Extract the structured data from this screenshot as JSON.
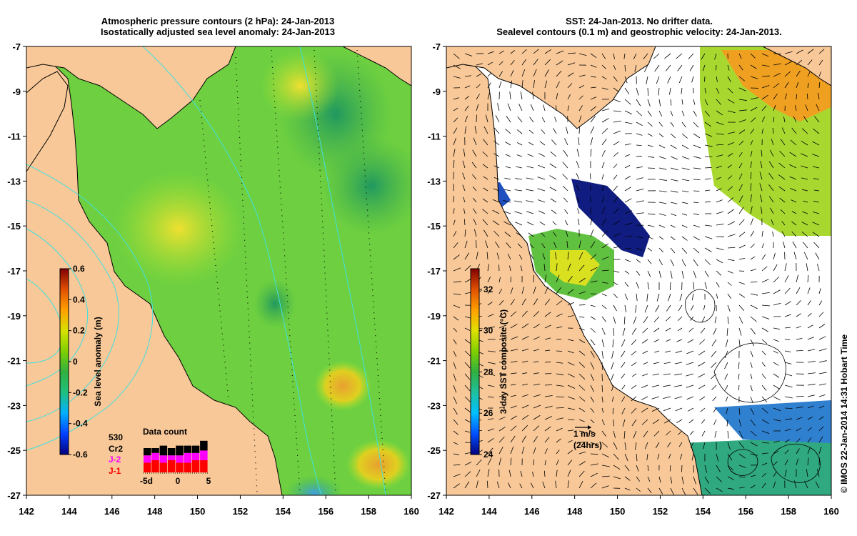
{
  "left_panel": {
    "title_line1": "Atmospheric pressure contours (2 hPa): 24-Jan-2013",
    "title_line2": "Isostatically adjusted sea level anomaly: 24-Jan-2013",
    "colorbar": {
      "label": "Sea level anomaly (m)",
      "ticks": [
        "0.6",
        "0.4",
        "0.2",
        "0",
        "-0.2",
        "-0.4",
        "-0.6"
      ],
      "range": [
        -0.6,
        0.6
      ],
      "colors": [
        "#00007f",
        "#0040ff",
        "#00b0ff",
        "#20c080",
        "#30b040",
        "#7fd000",
        "#d8e000",
        "#ffa000",
        "#e05000",
        "#800000"
      ]
    },
    "data_count": {
      "title": "Data count",
      "total": "530",
      "missions": [
        {
          "name": "Cr2",
          "color": "#000000"
        },
        {
          "name": "J-2",
          "color": "#ff00ff"
        },
        {
          "name": "J-1",
          "color": "#ff0000"
        }
      ],
      "xticks": [
        "-5d",
        "0",
        "5"
      ],
      "bars": [
        {
          "j1": 4,
          "j2": 3,
          "cr2": 3
        },
        {
          "j1": 5,
          "j2": 3,
          "cr2": 2
        },
        {
          "j1": 4,
          "j2": 3,
          "cr2": 4
        },
        {
          "j1": 5,
          "j2": 2,
          "cr2": 3
        },
        {
          "j1": 4,
          "j2": 3,
          "cr2": 4
        },
        {
          "j1": 4,
          "j2": 4,
          "cr2": 3
        },
        {
          "j1": 5,
          "j2": 3,
          "cr2": 3
        },
        {
          "j1": 5,
          "j2": 4,
          "cr2": 4
        }
      ]
    }
  },
  "right_panel": {
    "title_line1": "SST: 24-Jan-2013. No drifter data.",
    "title_line2": "Sealevel contours (0.1 m) and geostrophic velocity: 24-Jan-2013.",
    "colorbar": {
      "label": "3-day SST composite (°C)",
      "ticks": [
        "32",
        "30",
        "28",
        "26",
        "24"
      ],
      "range": [
        24,
        33
      ],
      "colors": [
        "#00007f",
        "#0050ff",
        "#00c0ff",
        "#20c0a0",
        "#30b040",
        "#80d000",
        "#e0e000",
        "#ffa000",
        "#e05000",
        "#800000"
      ]
    },
    "velocity_scale": {
      "label": "1 m/s",
      "sublabel": "(24hrs)"
    }
  },
  "axes": {
    "lon_ticks": [
      "142",
      "144",
      "146",
      "148",
      "150",
      "152",
      "154",
      "156",
      "158",
      "160"
    ],
    "lat_ticks": [
      "-7",
      "-9",
      "-11",
      "-13",
      "-15",
      "-17",
      "-19",
      "-21",
      "-23",
      "-25",
      "-27"
    ],
    "lon_range": [
      142,
      160
    ],
    "lat_range": [
      -27,
      -7
    ]
  },
  "credit": "© IMOS 22-Jan-2014 14:31 Hobart Time",
  "colors": {
    "land": "#f8c898",
    "sla_base": "#6ed040",
    "ocean_blank": "#ffffff"
  }
}
